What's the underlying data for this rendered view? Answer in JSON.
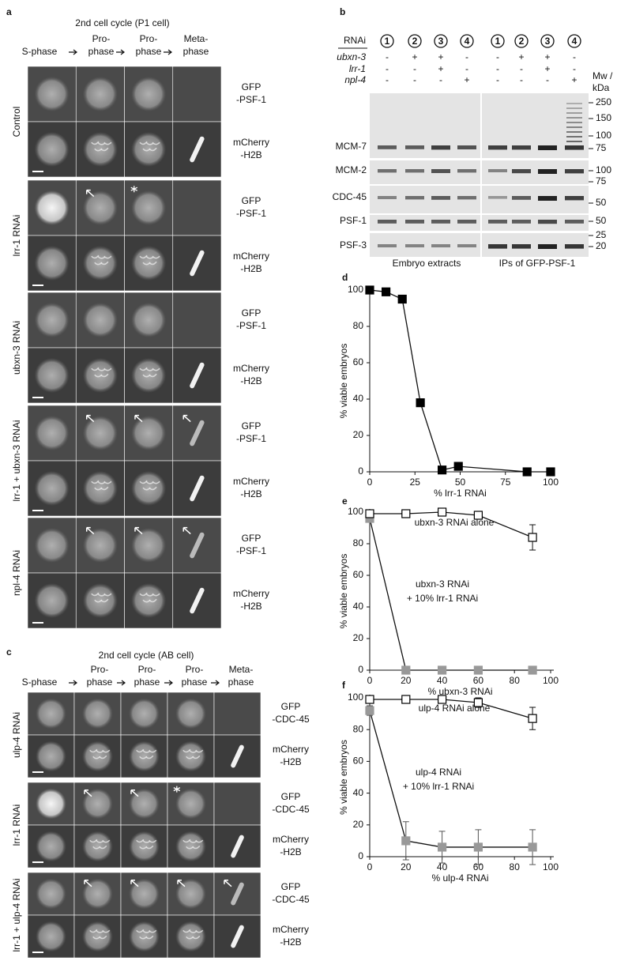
{
  "panel_labels": [
    "a",
    "b",
    "c",
    "d",
    "e",
    "f"
  ],
  "panel_a": {
    "header": "2nd cell cycle (P1 cell)",
    "columns": [
      [
        "S-phase"
      ],
      [
        "Pro-",
        "phase"
      ],
      [
        "Pro-",
        "phase"
      ],
      [
        "Meta-",
        "phase"
      ]
    ],
    "groups": [
      {
        "label": "Control",
        "channels": [
          [
            "GFP",
            "-PSF-1"
          ],
          [
            "mCherry",
            "-H2B"
          ]
        ]
      },
      {
        "label": "lrr-1 RNAi",
        "channels": [
          [
            "GFP",
            "-PSF-1"
          ],
          [
            "mCherry",
            "-H2B"
          ]
        ]
      },
      {
        "label": "ubxn-3 RNAi",
        "channels": [
          [
            "GFP",
            "-PSF-1"
          ],
          [
            "mCherry",
            "-H2B"
          ]
        ]
      },
      {
        "label": "lrr-1 + ubxn-3 RNAi",
        "channels": [
          [
            "GFP",
            "-PSF-1"
          ],
          [
            "mCherry",
            "-H2B"
          ]
        ]
      },
      {
        "label": "npl-4 RNAi",
        "channels": [
          [
            "GFP",
            "-PSF-1"
          ],
          [
            "mCherry",
            "-H2B"
          ]
        ]
      }
    ]
  },
  "panel_b": {
    "row_headers": [
      "RNAi",
      "ubxn-3",
      "lrr-1",
      "npl-4"
    ],
    "lanes": [
      "1",
      "2",
      "3",
      "4",
      "1",
      "2",
      "3",
      "4"
    ],
    "signs": [
      [
        "-",
        "+",
        "+",
        "-",
        "-",
        "+",
        "+",
        "-"
      ],
      [
        "-",
        "-",
        "+",
        "-",
        "-",
        "-",
        "+",
        "-"
      ],
      [
        "-",
        "-",
        "-",
        "+",
        "-",
        "-",
        "-",
        "+"
      ]
    ],
    "mw_header": [
      "Mw /",
      "kDa"
    ],
    "blots": [
      {
        "label": "MCM-7",
        "mw": [
          250,
          150,
          100,
          75
        ]
      },
      {
        "label": "MCM-2",
        "mw": [
          100,
          75
        ]
      },
      {
        "label": "CDC-45",
        "mw": [
          50
        ]
      },
      {
        "label": "PSF-1",
        "mw": [
          50
        ]
      },
      {
        "label": "PSF-3",
        "mw": [
          25,
          20
        ]
      }
    ],
    "footer": [
      "Embryo extracts",
      "IPs of GFP-PSF-1"
    ]
  },
  "panel_c": {
    "header": "2nd cell cycle (AB cell)",
    "columns": [
      [
        "S-phase"
      ],
      [
        "Pro-",
        "phase"
      ],
      [
        "Pro-",
        "phase"
      ],
      [
        "Pro-",
        "phase"
      ],
      [
        "Meta-",
        "phase"
      ]
    ],
    "groups": [
      {
        "label": "ulp-4 RNAi",
        "channels": [
          [
            "GFP",
            "-CDC-45"
          ],
          [
            "mCherry",
            "-H2B"
          ]
        ]
      },
      {
        "label": "lrr-1 RNAi",
        "channels": [
          [
            "GFP",
            "-CDC-45"
          ],
          [
            "mCherry",
            "-H2B"
          ]
        ]
      },
      {
        "label": "lrr-1 + ulp-4 RNAi",
        "channels": [
          [
            "GFP",
            "-CDC-45"
          ],
          [
            "mCherry",
            "-H2B"
          ]
        ]
      }
    ]
  },
  "chart_data": [
    {
      "type": "line",
      "ylabel": "% viable embryos",
      "xlabel": "% lrr-1 RNAi",
      "x": [
        0,
        9,
        18,
        28,
        40,
        49,
        87,
        100
      ],
      "series": [
        {
          "color": "#000000",
          "marker": "filled-square",
          "values": [
            100,
            99,
            95,
            38,
            1,
            3,
            0,
            0
          ]
        }
      ],
      "xlim": [
        0,
        100
      ],
      "xticks": [
        0,
        25,
        50,
        75,
        100
      ],
      "ylim": [
        0,
        100
      ],
      "yticks": [
        0,
        20,
        40,
        60,
        80,
        100
      ]
    },
    {
      "type": "line",
      "ylabel": "% viable embryos",
      "xlabel": "% ubxn-3 RNAi",
      "x": [
        0,
        20,
        40,
        60,
        90
      ],
      "series": [
        {
          "name": "ubxn-3 RNAi alone",
          "color": "#000000",
          "marker": "open-square",
          "values": [
            99,
            99,
            100,
            98,
            84
          ],
          "errors": [
            2,
            2,
            1,
            2,
            8
          ]
        },
        {
          "name": "ubxn-3 RNAi",
          "color": "#999999",
          "marker": "filled-square",
          "values": [
            96,
            0,
            0,
            0,
            0
          ],
          "errors": [
            2,
            0,
            0,
            0,
            0
          ]
        }
      ],
      "annotations": [
        "+ 10% lrr-1 RNAi"
      ],
      "xlim": [
        0,
        100
      ],
      "xticks": [
        0,
        20,
        40,
        60,
        80,
        100
      ],
      "ylim": [
        0,
        100
      ],
      "yticks": [
        0,
        20,
        40,
        60,
        80,
        100
      ]
    },
    {
      "type": "line",
      "ylabel": "% viable embryos",
      "xlabel": "% ulp-4 RNAi",
      "x": [
        0,
        20,
        40,
        60,
        90
      ],
      "series": [
        {
          "name": "ulp-4 RNAi alone",
          "color": "#000000",
          "marker": "open-square",
          "values": [
            99,
            99,
            99,
            97,
            87
          ],
          "errors": [
            2,
            2,
            2,
            3,
            7
          ]
        },
        {
          "name": "ulp-4 RNAi",
          "color": "#999999",
          "marker": "filled-square",
          "values": [
            92,
            10,
            6,
            6,
            6
          ],
          "errors": [
            3,
            12,
            10,
            11,
            11
          ]
        }
      ],
      "annotations": [
        "+ 10% lrr-1 RNAi"
      ],
      "xlim": [
        0,
        100
      ],
      "xticks": [
        0,
        20,
        40,
        60,
        80,
        100
      ],
      "ylim": [
        0,
        100
      ],
      "yticks": [
        0,
        20,
        40,
        60,
        80,
        100
      ]
    }
  ]
}
